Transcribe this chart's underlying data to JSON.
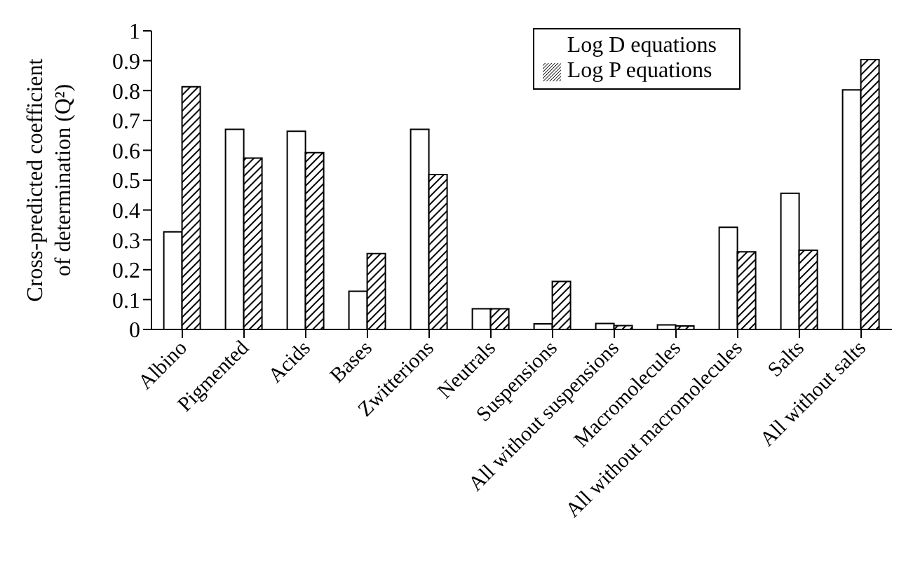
{
  "chart_data": {
    "type": "bar",
    "ylabel": "Cross-predicted coefficient of determination (Q²)",
    "categories": [
      "Albino",
      "Pigmented",
      "Acids",
      "Bases",
      "Zwitterions",
      "Neutrals",
      "Suspensions",
      "All without suspensions",
      "Macromolecules",
      "All without macromolecules",
      "Salts",
      "All without salts"
    ],
    "series": [
      {
        "name": "Log D equations",
        "color": "#ffffff",
        "values": [
          0.327,
          0.67,
          0.664,
          0.128,
          0.67,
          0.069,
          0.019,
          0.02,
          0.015,
          0.342,
          0.456,
          0.802
        ]
      },
      {
        "name": "Log P equations",
        "color": "#000000",
        "values": [
          0.813,
          0.574,
          0.592,
          0.254,
          0.519,
          0.069,
          0.161,
          0.013,
          0.012,
          0.26,
          0.265,
          0.904
        ]
      }
    ],
    "ylim": [
      0,
      1
    ],
    "yticks": [
      0,
      0.1,
      0.2,
      0.3,
      0.4,
      0.5,
      0.6,
      0.7,
      0.8,
      0.9,
      1
    ],
    "grid": false,
    "legend": "top right"
  }
}
